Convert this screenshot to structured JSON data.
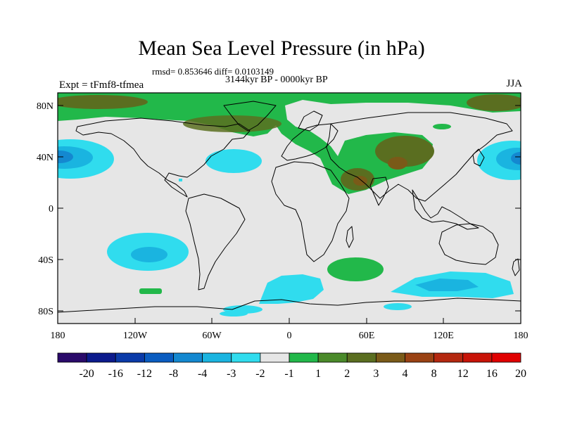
{
  "title": "Mean Sea Level Pressure (in hPa)",
  "stats_line": "rmsd= 0.853646 diff= 0.0103149",
  "period_line": "3144kyr BP - 0000kyr BP",
  "experiment_label": "Expt = tFmf8-tfmea",
  "season_label": "JJA",
  "axes": {
    "lat_ticks": [
      "80N",
      "40N",
      "0",
      "40S",
      "80S"
    ],
    "lon_ticks": [
      "180",
      "120W",
      "60W",
      "0",
      "60E",
      "120E",
      "180"
    ]
  },
  "colorbar": {
    "colors": [
      "#2a0a6a",
      "#0c1a8c",
      "#0a3aa8",
      "#0a5cc0",
      "#1488d0",
      "#1ab4e0",
      "#30dcee",
      "#e6e6e6",
      "#22b84a",
      "#4a8a2a",
      "#5a6e20",
      "#7a5a18",
      "#9a4214",
      "#b42810",
      "#c81408",
      "#e00000"
    ],
    "labels": [
      "-20",
      "-16",
      "-12",
      "-8",
      "-4",
      "-3",
      "-2",
      "-1",
      "1",
      "2",
      "3",
      "4",
      "8",
      "12",
      "16",
      "20"
    ]
  },
  "field_colors": {
    "background": "#e6e6e6",
    "positive_1": "#22b84a",
    "positive_3": "#5a6e20",
    "positive_4": "#7a5a18",
    "negative_2": "#30dcee",
    "negative_3": "#1ab4e0",
    "negative_4": "#1488d0"
  }
}
